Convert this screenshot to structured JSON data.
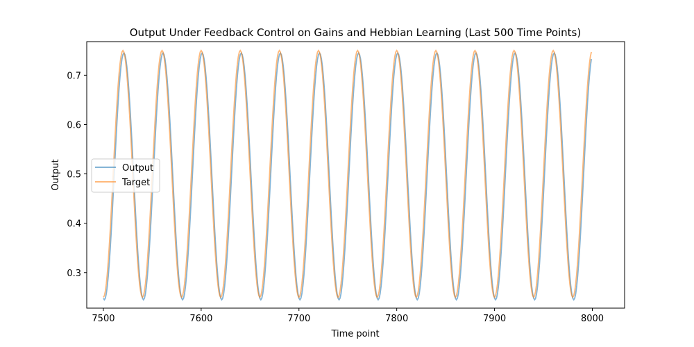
{
  "chart_data": {
    "type": "line",
    "title": "Output Under Feedback Control on Gains and Hebbian Learning (Last 500 Time Points)",
    "xlabel": "Time point",
    "ylabel": "Output",
    "xlim": [
      7483,
      8033
    ],
    "ylim": [
      0.228,
      0.768
    ],
    "xticks": [
      7500,
      7600,
      7700,
      7800,
      7900,
      8000
    ],
    "yticks": [
      0.3,
      0.4,
      0.5,
      0.6,
      0.7
    ],
    "xtick_labels": [
      "7500",
      "7600",
      "7700",
      "7800",
      "7900",
      "8000"
    ],
    "ytick_labels": [
      "0.3",
      "0.4",
      "0.5",
      "0.6",
      "0.7"
    ],
    "grid": false,
    "legend": {
      "location": "center left"
    },
    "x_range": [
      7500,
      7999
    ],
    "period": 40,
    "series": [
      {
        "name": "Output",
        "color": "#1f77b4",
        "alpha": 0.55,
        "center": 0.495,
        "amplitude": 0.25,
        "phase_lag": 1.0
      },
      {
        "name": "Target",
        "color": "#ff7f0e",
        "alpha": 0.55,
        "center": 0.5,
        "amplitude": 0.25,
        "phase_lag": 0.0
      }
    ]
  }
}
